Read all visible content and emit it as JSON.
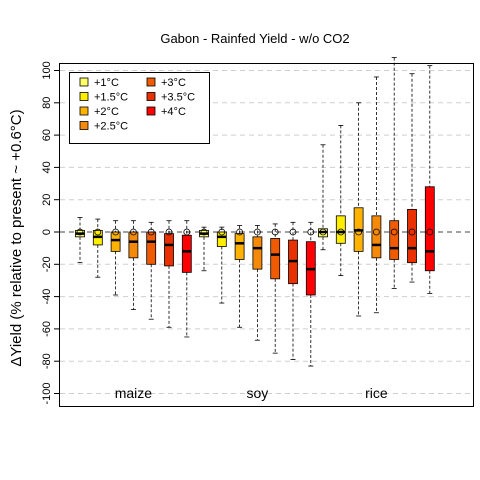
{
  "chart_data": {
    "type": "box",
    "title": "Gabon - Rainfed Yield - w/o CO2",
    "ylabel": "ΔYield (% relative to present ~ +0.6°C)",
    "xlabel": "",
    "ylim": [
      -108,
      108
    ],
    "yticks": [
      -100,
      -80,
      -60,
      -40,
      -20,
      0,
      20,
      40,
      60,
      80,
      100
    ],
    "ytick_labels": [
      "-100",
      "-80",
      "-60",
      "-40",
      "-20",
      "0",
      "20",
      "40",
      "60",
      "80",
      "100"
    ],
    "grid": "dashed horizontal at each y tick",
    "legend": {
      "placement": "top-left",
      "entries": [
        {
          "label": "+1°C",
          "color": "#FFFF66"
        },
        {
          "label": "+1.5°C",
          "color": "#FFEE00"
        },
        {
          "label": "+2°C",
          "color": "#FFB300"
        },
        {
          "label": "+2.5°C",
          "color": "#F58A0A"
        },
        {
          "label": "+3°C",
          "color": "#F05A00"
        },
        {
          "label": "+3.5°C",
          "color": "#E83000"
        },
        {
          "label": "+4°C",
          "color": "#FF0000"
        }
      ]
    },
    "groups": [
      {
        "name": "maize",
        "boxes": [
          {
            "level": "+1°C",
            "whislo": -19,
            "q1": -3,
            "med": -1,
            "q3": 1,
            "whishi": 9,
            "mean": 0
          },
          {
            "level": "+1.5°C",
            "whislo": -28,
            "q1": -8,
            "med": -3,
            "q3": 1,
            "whishi": 8,
            "mean": 0
          },
          {
            "level": "+2°C",
            "whislo": -39,
            "q1": -12,
            "med": -5,
            "q3": 0,
            "whishi": 7,
            "mean": 0
          },
          {
            "level": "+2.5°C",
            "whislo": -48,
            "q1": -16,
            "med": -6,
            "q3": 0,
            "whishi": 7,
            "mean": 0
          },
          {
            "level": "+3°C",
            "whislo": -54,
            "q1": -20,
            "med": -6,
            "q3": 0,
            "whishi": 6,
            "mean": 0
          },
          {
            "level": "+3.5°C",
            "whislo": -59,
            "q1": -21,
            "med": -8,
            "q3": -1,
            "whishi": 7,
            "mean": 0
          },
          {
            "level": "+4°C",
            "whislo": -65,
            "q1": -25,
            "med": -12,
            "q3": -2,
            "whishi": 7,
            "mean": 0
          }
        ]
      },
      {
        "name": "soy",
        "boxes": [
          {
            "level": "+1°C",
            "whislo": -24,
            "q1": -3,
            "med": -1,
            "q3": 1,
            "whishi": 3,
            "mean": 0
          },
          {
            "level": "+1.5°C",
            "whislo": -44,
            "q1": -9,
            "med": -3,
            "q3": 0,
            "whishi": 3,
            "mean": 0
          },
          {
            "level": "+2°C",
            "whislo": -59,
            "q1": -17,
            "med": -7,
            "q3": -1,
            "whishi": 4,
            "mean": 0
          },
          {
            "level": "+2.5°C",
            "whislo": -67,
            "q1": -23,
            "med": -10,
            "q3": -3,
            "whishi": 4,
            "mean": 0
          },
          {
            "level": "+3°C",
            "whislo": -75,
            "q1": -29,
            "med": -14,
            "q3": -4,
            "whishi": 5,
            "mean": 0
          },
          {
            "level": "+3.5°C",
            "whislo": -79,
            "q1": -32,
            "med": -18,
            "q3": -5,
            "whishi": 6,
            "mean": 0
          },
          {
            "level": "+4°C",
            "whislo": -83,
            "q1": -39,
            "med": -23,
            "q3": -6,
            "whishi": 6,
            "mean": 0
          }
        ]
      },
      {
        "name": "rice",
        "boxes": [
          {
            "level": "+1°C",
            "whislo": -11,
            "q1": -3,
            "med": 0,
            "q3": 2,
            "whishi": 54,
            "mean": 0
          },
          {
            "level": "+1.5°C",
            "whislo": -27,
            "q1": -7,
            "med": 0,
            "q3": 10,
            "whishi": 66,
            "mean": 0
          },
          {
            "level": "+2°C",
            "whislo": -52,
            "q1": -12,
            "med": 1,
            "q3": 15,
            "whishi": 80,
            "mean": 0
          },
          {
            "level": "+2.5°C",
            "whislo": -50,
            "q1": -16,
            "med": -8,
            "q3": 10,
            "whishi": 96,
            "mean": 0
          },
          {
            "level": "+3°C",
            "whislo": -35,
            "q1": -17,
            "med": -10,
            "q3": 7,
            "whishi": 108,
            "mean": 0
          },
          {
            "level": "+3.5°C",
            "whislo": -31,
            "q1": -19,
            "med": -10,
            "q3": 14,
            "whishi": 98,
            "mean": 0
          },
          {
            "level": "+4°C",
            "whislo": -38,
            "q1": -24,
            "med": -12,
            "q3": 28,
            "whishi": 103,
            "mean": 0
          }
        ]
      }
    ]
  }
}
